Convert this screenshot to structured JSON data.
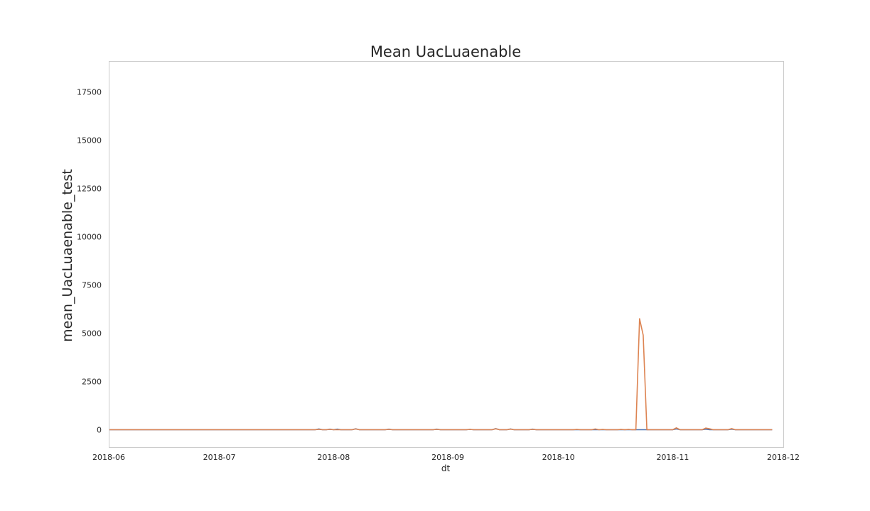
{
  "chart_data": {
    "type": "line",
    "title": "Mean UacLuaenable",
    "xlabel": "dt",
    "ylabel": "mean_UacLuaenable_test",
    "x_range": [
      "2018-06-01",
      "2018-12-01"
    ],
    "ylim": [
      -900,
      19100
    ],
    "x_ticks": [
      "2018-06",
      "2018-07",
      "2018-08",
      "2018-09",
      "2018-10",
      "2018-11",
      "2018-12"
    ],
    "y_ticks": [
      0,
      2500,
      5000,
      7500,
      10000,
      12500,
      15000,
      17500
    ],
    "grid": false,
    "series": [
      {
        "color": "#4c72b0",
        "points": [
          [
            "2018-06-01",
            0
          ],
          [
            "2018-07-27",
            0
          ],
          [
            "2018-07-28",
            40
          ],
          [
            "2018-07-29",
            0
          ],
          [
            "2018-07-30",
            0
          ],
          [
            "2018-07-31",
            30
          ],
          [
            "2018-08-01",
            0
          ],
          [
            "2018-08-02",
            30
          ],
          [
            "2018-08-03",
            0
          ],
          [
            "2018-08-04",
            0
          ],
          [
            "2018-08-05",
            0
          ],
          [
            "2018-08-06",
            0
          ],
          [
            "2018-08-07",
            50
          ],
          [
            "2018-08-08",
            0
          ],
          [
            "2018-08-15",
            0
          ],
          [
            "2018-08-16",
            30
          ],
          [
            "2018-08-17",
            0
          ],
          [
            "2018-08-28",
            0
          ],
          [
            "2018-08-29",
            30
          ],
          [
            "2018-08-30",
            0
          ],
          [
            "2018-09-06",
            0
          ],
          [
            "2018-09-07",
            20
          ],
          [
            "2018-09-08",
            0
          ],
          [
            "2018-09-13",
            0
          ],
          [
            "2018-09-14",
            60
          ],
          [
            "2018-09-15",
            0
          ],
          [
            "2018-09-17",
            0
          ],
          [
            "2018-09-18",
            40
          ],
          [
            "2018-09-19",
            0
          ],
          [
            "2018-09-23",
            0
          ],
          [
            "2018-09-24",
            30
          ],
          [
            "2018-09-25",
            0
          ],
          [
            "2018-10-24",
            0
          ],
          [
            "2018-10-25",
            0
          ],
          [
            "2018-10-26",
            0
          ],
          [
            "2018-11-01",
            0
          ],
          [
            "2018-11-02",
            40
          ],
          [
            "2018-11-03",
            0
          ],
          [
            "2018-11-09",
            0
          ],
          [
            "2018-11-10",
            30
          ],
          [
            "2018-11-11",
            0
          ],
          [
            "2018-11-16",
            0
          ],
          [
            "2018-11-17",
            30
          ],
          [
            "2018-11-18",
            0
          ],
          [
            "2018-11-28",
            0
          ]
        ]
      },
      {
        "color": "#dd8452",
        "points": [
          [
            "2018-06-01",
            0
          ],
          [
            "2018-07-27",
            0
          ],
          [
            "2018-07-28",
            20
          ],
          [
            "2018-07-29",
            0
          ],
          [
            "2018-07-30",
            0
          ],
          [
            "2018-07-31",
            20
          ],
          [
            "2018-08-01",
            0
          ],
          [
            "2018-08-06",
            0
          ],
          [
            "2018-08-07",
            40
          ],
          [
            "2018-08-08",
            0
          ],
          [
            "2018-08-15",
            0
          ],
          [
            "2018-08-16",
            20
          ],
          [
            "2018-08-17",
            0
          ],
          [
            "2018-08-28",
            0
          ],
          [
            "2018-08-29",
            20
          ],
          [
            "2018-08-30",
            0
          ],
          [
            "2018-09-06",
            0
          ],
          [
            "2018-09-07",
            20
          ],
          [
            "2018-09-08",
            0
          ],
          [
            "2018-09-13",
            0
          ],
          [
            "2018-09-14",
            50
          ],
          [
            "2018-09-15",
            0
          ],
          [
            "2018-09-17",
            0
          ],
          [
            "2018-09-18",
            30
          ],
          [
            "2018-09-19",
            0
          ],
          [
            "2018-09-23",
            0
          ],
          [
            "2018-09-24",
            20
          ],
          [
            "2018-09-25",
            0
          ],
          [
            "2018-10-05",
            0
          ],
          [
            "2018-10-06",
            20
          ],
          [
            "2018-10-07",
            0
          ],
          [
            "2018-10-10",
            0
          ],
          [
            "2018-10-11",
            40
          ],
          [
            "2018-10-12",
            0
          ],
          [
            "2018-10-13",
            20
          ],
          [
            "2018-10-14",
            0
          ],
          [
            "2018-10-17",
            0
          ],
          [
            "2018-10-18",
            20
          ],
          [
            "2018-10-19",
            0
          ],
          [
            "2018-10-20",
            20
          ],
          [
            "2018-10-21",
            0
          ],
          [
            "2018-10-22",
            0
          ],
          [
            "2018-10-23",
            5750
          ],
          [
            "2018-10-24",
            4900
          ],
          [
            "2018-10-25",
            0
          ],
          [
            "2018-11-01",
            0
          ],
          [
            "2018-11-02",
            100
          ],
          [
            "2018-11-03",
            0
          ],
          [
            "2018-11-09",
            0
          ],
          [
            "2018-11-10",
            90
          ],
          [
            "2018-11-11",
            50
          ],
          [
            "2018-11-12",
            0
          ],
          [
            "2018-11-16",
            0
          ],
          [
            "2018-11-17",
            60
          ],
          [
            "2018-11-18",
            0
          ],
          [
            "2018-11-28",
            0
          ]
        ]
      }
    ]
  }
}
